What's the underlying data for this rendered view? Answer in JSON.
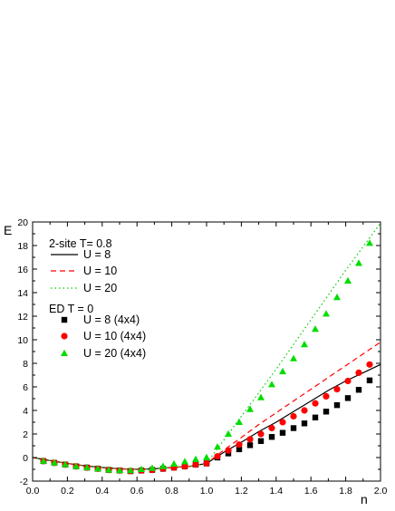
{
  "chart_data": {
    "type": "line",
    "xlabel": "n",
    "ylabel": "E",
    "xlim": [
      0.0,
      2.0
    ],
    "ylim": [
      -2,
      20
    ],
    "xticks": [
      "0.0",
      "0.2",
      "0.4",
      "0.6",
      "0.8",
      "1.0",
      "1.2",
      "1.4",
      "1.6",
      "1.8",
      "2.0"
    ],
    "yticks": [
      "-2",
      "0",
      "2",
      "4",
      "6",
      "8",
      "10",
      "12",
      "14",
      "16",
      "18",
      "20"
    ],
    "grid": false,
    "legend_position": "top-left",
    "legend": {
      "header1": "2-site T= 0.8",
      "header2": "ED T = 0"
    },
    "lines": [
      {
        "name": "U = 8",
        "color": "#000000",
        "style": "solid",
        "x": [
          0,
          0.1,
          0.2,
          0.3,
          0.4,
          0.5,
          0.6,
          0.7,
          0.8,
          0.9,
          1.0,
          1.1,
          1.2,
          1.3,
          1.4,
          1.5,
          1.6,
          1.7,
          1.8,
          1.9,
          2.0
        ],
        "y": [
          0,
          -0.25,
          -0.5,
          -0.7,
          -0.85,
          -0.95,
          -1.0,
          -0.95,
          -0.85,
          -0.75,
          -0.5,
          0.45,
          1.3,
          2.2,
          3.0,
          3.9,
          4.8,
          5.7,
          6.5,
          7.2,
          7.9
        ]
      },
      {
        "name": "U = 10",
        "color": "#ff0000",
        "style": "dashed",
        "x": [
          0,
          0.1,
          0.2,
          0.3,
          0.4,
          0.5,
          0.6,
          0.7,
          0.8,
          0.9,
          1.0,
          1.1,
          1.2,
          1.3,
          1.4,
          1.5,
          1.6,
          1.7,
          1.8,
          1.9,
          2.0
        ],
        "y": [
          0,
          -0.25,
          -0.5,
          -0.7,
          -0.85,
          -0.95,
          -1.0,
          -0.95,
          -0.85,
          -0.75,
          -0.5,
          0.65,
          1.7,
          2.8,
          3.8,
          4.8,
          5.8,
          6.8,
          7.8,
          8.8,
          9.8
        ]
      },
      {
        "name": "U = 20",
        "color": "#00cc00",
        "style": "dotted",
        "x": [
          0,
          0.1,
          0.2,
          0.3,
          0.4,
          0.5,
          0.6,
          0.7,
          0.8,
          0.9,
          1.0,
          1.1,
          1.2,
          1.3,
          1.4,
          1.5,
          1.6,
          1.7,
          1.8,
          1.9,
          2.0
        ],
        "y": [
          0,
          -0.25,
          -0.5,
          -0.7,
          -0.85,
          -0.95,
          -1.0,
          -0.95,
          -0.85,
          -0.75,
          -0.5,
          1.5,
          3.5,
          5.5,
          7.5,
          9.6,
          11.7,
          13.8,
          15.9,
          17.9,
          19.9
        ]
      }
    ],
    "markers": [
      {
        "name": "U = 8 (4x4)",
        "color": "#000000",
        "shape": "square",
        "x": [
          0.0625,
          0.125,
          0.1875,
          0.25,
          0.3125,
          0.375,
          0.4375,
          0.5,
          0.5625,
          0.625,
          0.6875,
          0.75,
          0.8125,
          0.875,
          0.9375,
          1.0,
          1.0625,
          1.125,
          1.1875,
          1.25,
          1.3125,
          1.375,
          1.4375,
          1.5,
          1.5625,
          1.625,
          1.6875,
          1.75,
          1.8125,
          1.875,
          1.9375
        ],
        "y": [
          -0.3,
          -0.45,
          -0.6,
          -0.75,
          -0.85,
          -0.95,
          -1.05,
          -1.1,
          -1.15,
          -1.1,
          -1.05,
          -0.95,
          -0.85,
          -0.75,
          -0.6,
          -0.5,
          0,
          0.35,
          0.7,
          1.05,
          1.4,
          1.75,
          2.1,
          2.5,
          2.9,
          3.4,
          3.9,
          4.45,
          5.05,
          5.75,
          6.55
        ]
      },
      {
        "name": "U = 10 (4x4)",
        "color": "#ff0000",
        "shape": "circle",
        "x": [
          0.0625,
          0.125,
          0.1875,
          0.25,
          0.3125,
          0.375,
          0.4375,
          0.5,
          0.5625,
          0.625,
          0.6875,
          0.75,
          0.8125,
          0.875,
          0.9375,
          1.0,
          1.0625,
          1.125,
          1.1875,
          1.25,
          1.3125,
          1.375,
          1.4375,
          1.5,
          1.5625,
          1.625,
          1.6875,
          1.75,
          1.8125,
          1.875,
          1.9375
        ],
        "y": [
          -0.3,
          -0.45,
          -0.6,
          -0.75,
          -0.85,
          -0.95,
          -1.05,
          -1.1,
          -1.15,
          -1.1,
          -1.05,
          -0.95,
          -0.85,
          -0.75,
          -0.6,
          -0.5,
          0.1,
          0.6,
          1.1,
          1.55,
          2.0,
          2.5,
          3.0,
          3.5,
          4.0,
          4.6,
          5.2,
          5.8,
          6.5,
          7.2,
          7.9
        ]
      },
      {
        "name": "U = 20 (4x4)",
        "color": "#00dd00",
        "shape": "triangle",
        "x": [
          0.0625,
          0.125,
          0.1875,
          0.25,
          0.3125,
          0.375,
          0.4375,
          0.5,
          0.5625,
          0.625,
          0.6875,
          0.75,
          0.8125,
          0.875,
          0.9375,
          1.0,
          1.0625,
          1.125,
          1.1875,
          1.25,
          1.3125,
          1.375,
          1.4375,
          1.5,
          1.5625,
          1.625,
          1.6875,
          1.75,
          1.8125,
          1.875,
          1.9375
        ],
        "y": [
          -0.3,
          -0.45,
          -0.6,
          -0.75,
          -0.85,
          -0.95,
          -1.05,
          -1.1,
          -1.1,
          -1.0,
          -0.9,
          -0.75,
          -0.55,
          -0.35,
          -0.15,
          0,
          0.9,
          2.0,
          3.0,
          4.1,
          5.1,
          6.2,
          7.3,
          8.4,
          9.6,
          10.9,
          12.2,
          13.6,
          15.0,
          16.5,
          18.2
        ]
      }
    ]
  }
}
